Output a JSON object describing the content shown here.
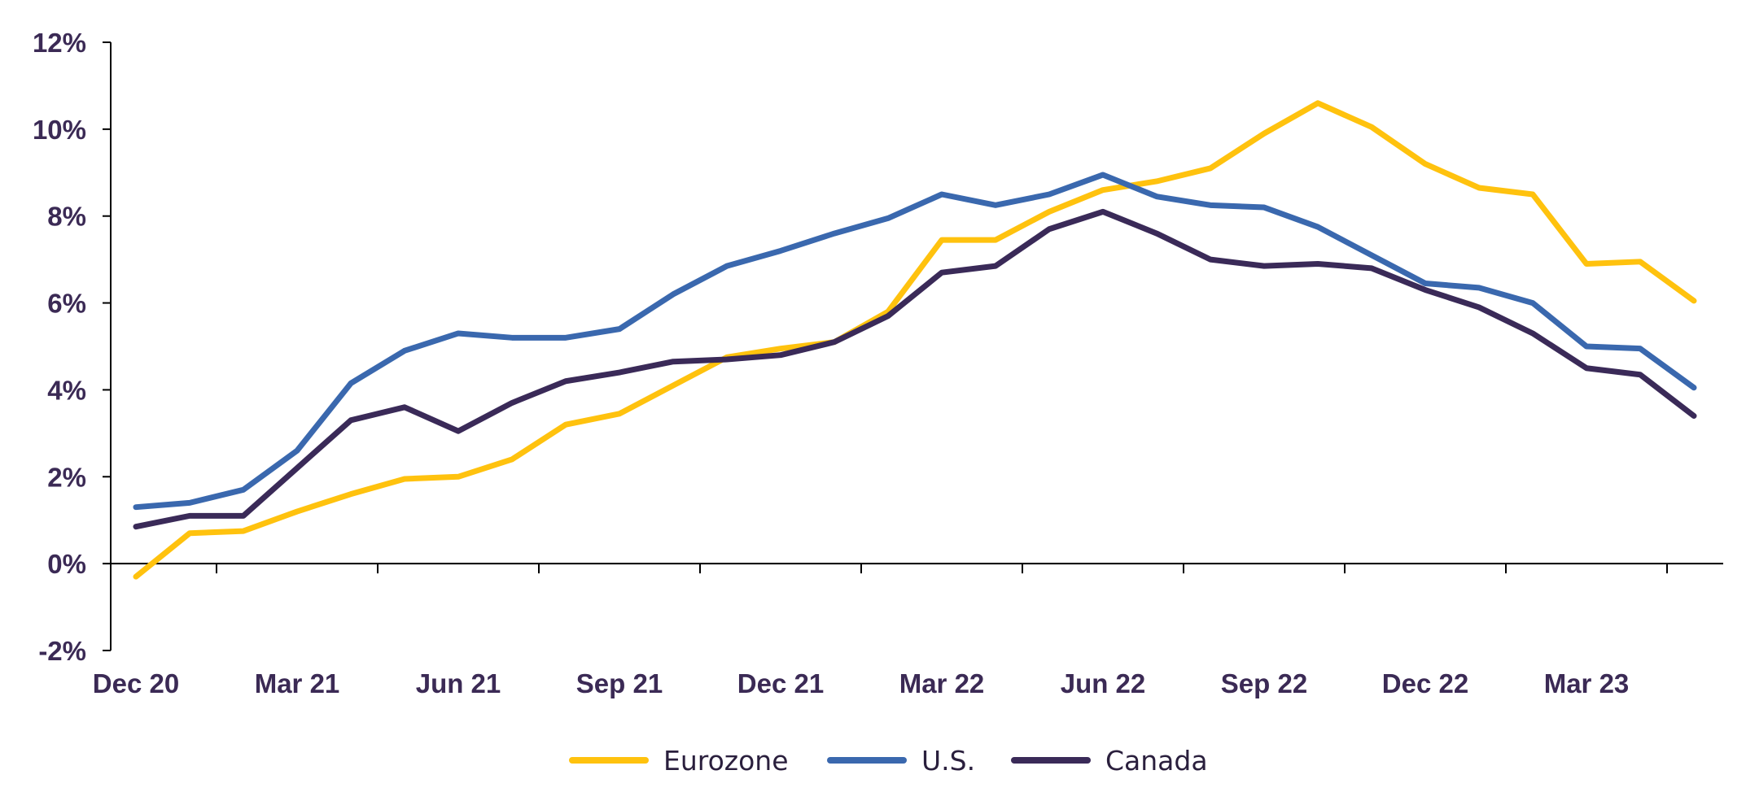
{
  "chart_data": {
    "type": "line",
    "title": "",
    "xlabel": "",
    "ylabel": "",
    "ylim": [
      -2,
      12
    ],
    "y_ticks": [
      {
        "value": -2,
        "label": "-2%"
      },
      {
        "value": 0,
        "label": "0%"
      },
      {
        "value": 2,
        "label": "2%"
      },
      {
        "value": 4,
        "label": "4%"
      },
      {
        "value": 6,
        "label": "6%"
      },
      {
        "value": 8,
        "label": "8%"
      },
      {
        "value": 10,
        "label": "10%"
      },
      {
        "value": 12,
        "label": "12%"
      }
    ],
    "x": [
      "Dec 20",
      "Jan 21",
      "Feb 21",
      "Mar 21",
      "Apr 21",
      "May 21",
      "Jun 21",
      "Jul 21",
      "Aug 21",
      "Sep 21",
      "Oct 21",
      "Nov 21",
      "Dec 21",
      "Jan 22",
      "Feb 22",
      "Mar 22",
      "Apr 22",
      "May 22",
      "Jun 22",
      "Jul 22",
      "Aug 22",
      "Sep 22",
      "Oct 22",
      "Nov 22",
      "Dec 22",
      "Jan 23",
      "Feb 23",
      "Mar 23",
      "Apr 23",
      "May 23"
    ],
    "x_tick_labels": [
      "Dec 20",
      "Mar 21",
      "Jun 21",
      "Sep 21",
      "Dec 21",
      "Mar 22",
      "Jun 22",
      "Sep 22",
      "Dec 22",
      "Mar 23"
    ],
    "grid": false,
    "legend_position": "bottom-center",
    "series": [
      {
        "name": "Eurozone",
        "color": "#ffc20e",
        "values": [
          -0.3,
          0.7,
          0.75,
          1.2,
          1.6,
          1.95,
          2.0,
          2.4,
          3.2,
          3.45,
          4.1,
          4.75,
          4.95,
          5.1,
          5.8,
          7.45,
          7.45,
          8.1,
          8.6,
          8.8,
          9.1,
          9.9,
          10.6,
          10.05,
          9.2,
          8.65,
          8.5,
          6.9,
          6.95,
          6.05
        ]
      },
      {
        "name": "U.S.",
        "color": "#3a68ae",
        "values": [
          1.3,
          1.4,
          1.7,
          2.6,
          4.15,
          4.9,
          5.3,
          5.2,
          5.2,
          5.4,
          6.2,
          6.85,
          7.2,
          7.6,
          7.95,
          8.5,
          8.25,
          8.5,
          8.95,
          8.45,
          8.25,
          8.2,
          7.75,
          7.1,
          6.45,
          6.35,
          6.0,
          5.0,
          4.95,
          4.05
        ]
      },
      {
        "name": "Canada",
        "color": "#3a2a58",
        "values": [
          0.85,
          1.1,
          1.1,
          2.2,
          3.3,
          3.6,
          3.05,
          3.7,
          4.2,
          4.4,
          4.65,
          4.7,
          4.8,
          5.1,
          5.7,
          6.7,
          6.85,
          7.7,
          8.1,
          7.6,
          7.0,
          6.85,
          6.9,
          6.8,
          6.3,
          5.9,
          5.3,
          4.5,
          4.35,
          3.4
        ]
      }
    ]
  }
}
